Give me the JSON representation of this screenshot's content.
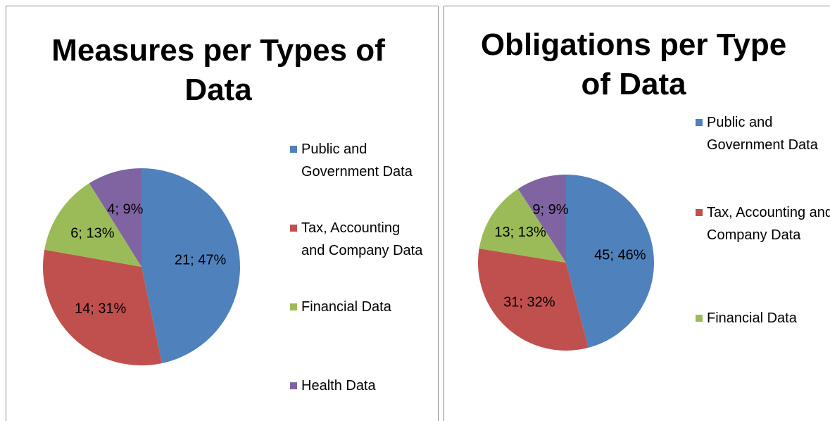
{
  "chart_data": [
    {
      "type": "pie",
      "title": "Measures per Types of Data",
      "categories": [
        "Public and Government Data",
        "Tax, Accounting and Company Data",
        "Financial Data",
        "Health Data"
      ],
      "values": [
        21,
        14,
        6,
        4
      ],
      "value_labels": [
        "21; 47%",
        "14; 31%",
        "6; 13%",
        "4; 9%"
      ],
      "colors": [
        "#4f81bd",
        "#c0504d",
        "#9bbb59",
        "#8064a2"
      ],
      "legend": "right"
    },
    {
      "type": "pie",
      "title": "Obligations per Type of Data",
      "categories": [
        "Public and Government Data",
        "Tax, Accounting and Company Data",
        "Financial Data",
        null
      ],
      "values": [
        45,
        31,
        13,
        9
      ],
      "value_labels": [
        "45; 46%",
        "31; 32%",
        "13; 13%",
        "9; 9%"
      ],
      "colors": [
        "#4f81bd",
        "#c0504d",
        "#9bbb59",
        "#8064a2"
      ],
      "legend": "right"
    }
  ]
}
